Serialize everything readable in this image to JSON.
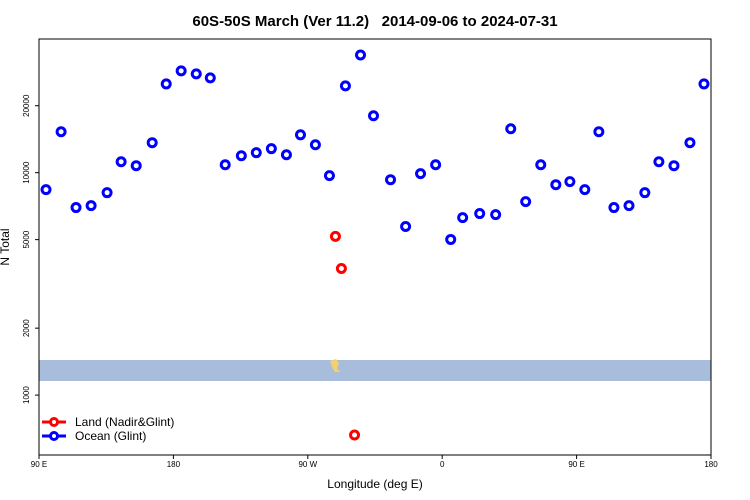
{
  "chart_data": {
    "type": "scatter",
    "title": "60S-50S March (Ver 11.2)   2014-09-06 to 2024-07-31",
    "x_label": "Longitude (deg E)",
    "y_label": "N Total",
    "xlim": [
      90,
      540
    ],
    "ylim": [
      538,
      39900
    ],
    "y_log": true,
    "legend": "bottom-left",
    "xticks": [
      {
        "value": 90,
        "label": "90 E"
      },
      180,
      {
        "value": 270,
        "label": "90 W"
      },
      {
        "value": 360,
        "label": "0"
      },
      {
        "value": 450,
        "label": "90 E"
      },
      {
        "value": 540,
        "label": "180"
      }
    ],
    "yticks": [
      1000,
      2000,
      5000,
      10000,
      20000
    ],
    "series": [
      {
        "name": "Land (Nadir&Glint)",
        "color": "#ff0000",
        "x": [
          288.5,
          292.5,
          301.3
        ],
        "values": [
          5170,
          3710,
          662
        ]
      },
      {
        "name": "Ocean (Glint)",
        "color": "#0000ff",
        "x": [
          94.7,
          104.8,
          114.8,
          124.9,
          135.6,
          145.0,
          155.1,
          165.8,
          175.2,
          185.2,
          195.3,
          204.7,
          214.7,
          225.5,
          235.5,
          245.6,
          255.7,
          265.1,
          275.1,
          284.5,
          295.2,
          305.3,
          314.0,
          325.4,
          335.5,
          345.5,
          355.6,
          365.7,
          373.7,
          385.1,
          395.8,
          405.9,
          415.9,
          426.0,
          436.1,
          445.5,
          455.5,
          464.9,
          475.0,
          485.1,
          495.7,
          505.1,
          515.2,
          525.9,
          535.3
        ],
        "values": [
          8390,
          15270,
          6970,
          7110,
          8130,
          11200,
          10750,
          13640,
          25060,
          28680,
          27800,
          26690,
          10860,
          11920,
          12300,
          12820,
          12040,
          14800,
          13350,
          9700,
          24550,
          33820,
          18020,
          9300,
          5730,
          9900,
          10860,
          5010,
          6280,
          6550,
          6480,
          15750,
          7410,
          10860,
          8830,
          9120,
          8390,
          15270,
          6970,
          7110,
          8130,
          11200,
          10750,
          13640,
          25060
        ]
      }
    ]
  }
}
